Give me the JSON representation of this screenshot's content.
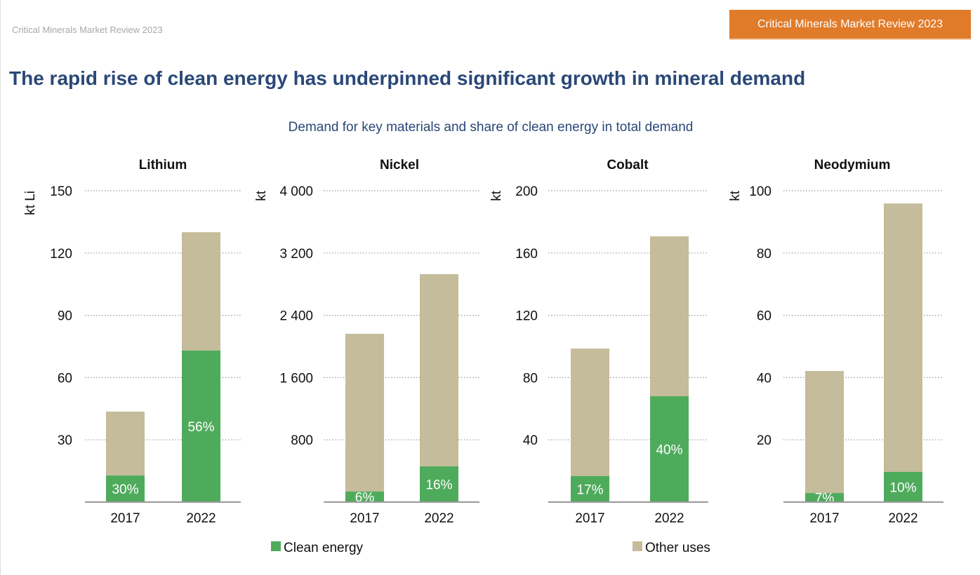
{
  "header": {
    "source_label": "Critical Minerals Market Review 2023",
    "badge": "Critical Minerals Market Review 2023"
  },
  "title": "The rapid rise of clean energy has underpinned significant growth in mineral demand",
  "subtitle": "Demand for key materials and share of clean energy in total demand",
  "colors": {
    "clean_energy": "#4fab5c",
    "other_uses": "#c4bc9a",
    "title": "#2a4878",
    "badge": "#e07b2a"
  },
  "legend": {
    "placement": "bottom",
    "items": [
      {
        "label": "Clean energy",
        "color": "#4fab5c"
      },
      {
        "label": "Other uses",
        "color": "#c4bc9a"
      }
    ]
  },
  "chart_data": [
    {
      "type": "bar",
      "stacked": true,
      "title": "Lithium",
      "ylabel": "kt Li",
      "ylim": [
        0,
        150
      ],
      "yticks": [
        "30",
        "60",
        "90",
        "120",
        "150"
      ],
      "ytick_values": [
        30,
        60,
        90,
        120,
        150
      ],
      "grid": true,
      "categories": [
        "2017",
        "2022"
      ],
      "series": [
        {
          "name": "Clean energy",
          "values": [
            12.8,
            73
          ]
        },
        {
          "name": "Other uses",
          "values": [
            30.8,
            57
          ]
        }
      ],
      "data_labels": [
        "30%",
        "56%"
      ]
    },
    {
      "type": "bar",
      "stacked": true,
      "title": "Nickel",
      "ylabel": "kt",
      "ylim": [
        0,
        4000
      ],
      "yticks": [
        "800",
        "1 600",
        "2 400",
        "3 200",
        "4 000"
      ],
      "ytick_values": [
        800,
        1600,
        2400,
        3200,
        4000
      ],
      "grid": true,
      "categories": [
        "2017",
        "2022"
      ],
      "series": [
        {
          "name": "Clean energy",
          "values": [
            135,
            459
          ]
        },
        {
          "name": "Other uses",
          "values": [
            2027,
            2469
          ]
        }
      ],
      "data_labels": [
        "6%",
        "16%"
      ]
    },
    {
      "type": "bar",
      "stacked": true,
      "title": "Cobalt",
      "ylabel": "kt",
      "ylim": [
        0,
        200
      ],
      "yticks": [
        "40",
        "80",
        "120",
        "160",
        "200"
      ],
      "ytick_values": [
        40,
        80,
        120,
        160,
        200
      ],
      "grid": true,
      "categories": [
        "2017",
        "2022"
      ],
      "series": [
        {
          "name": "Clean energy",
          "values": [
            16.7,
            68
          ]
        },
        {
          "name": "Other uses",
          "values": [
            81.9,
            102.7
          ]
        }
      ],
      "data_labels": [
        "17%",
        "40%"
      ]
    },
    {
      "type": "bar",
      "stacked": true,
      "title": "Neodymium",
      "ylabel": "kt",
      "ylim": [
        0,
        100
      ],
      "yticks": [
        "20",
        "40",
        "60",
        "80",
        "100"
      ],
      "ytick_values": [
        20,
        40,
        60,
        80,
        100
      ],
      "grid": true,
      "categories": [
        "2017",
        "2022"
      ],
      "series": [
        {
          "name": "Clean energy",
          "values": [
            2.9,
            9.7
          ]
        },
        {
          "name": "Other uses",
          "values": [
            39.2,
            86.2
          ]
        }
      ],
      "data_labels": [
        "7%",
        "10%"
      ]
    }
  ]
}
